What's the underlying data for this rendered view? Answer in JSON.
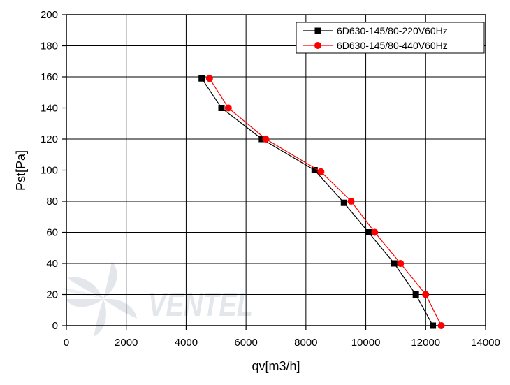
{
  "chart_data": {
    "type": "line",
    "xlabel": "qv[m3/h]",
    "ylabel": "Pst[Pa]",
    "xlim": [
      0,
      14000
    ],
    "ylim": [
      0,
      200
    ],
    "xticks": [
      0,
      2000,
      4000,
      6000,
      8000,
      10000,
      12000,
      14000
    ],
    "yticks": [
      0,
      20,
      40,
      60,
      80,
      100,
      120,
      140,
      160,
      180,
      200
    ],
    "grid": true,
    "legend_position": "top-right",
    "series": [
      {
        "name": "6D630-145/80-220V60Hz",
        "color": "#000000",
        "marker": "square",
        "points": [
          [
            4520,
            159
          ],
          [
            5180,
            140
          ],
          [
            6530,
            120
          ],
          [
            8290,
            100
          ],
          [
            9270,
            79
          ],
          [
            10090,
            60
          ],
          [
            10950,
            40
          ],
          [
            11670,
            20
          ],
          [
            12240,
            0
          ]
        ]
      },
      {
        "name": "6D630-145/80-440V60Hz",
        "color": "#ff0000",
        "marker": "circle",
        "points": [
          [
            4780,
            159
          ],
          [
            5410,
            140
          ],
          [
            6660,
            120
          ],
          [
            8500,
            99
          ],
          [
            9510,
            80
          ],
          [
            10300,
            60
          ],
          [
            11160,
            40
          ],
          [
            12000,
            20
          ],
          [
            12520,
            0
          ]
        ]
      }
    ]
  },
  "watermark": {
    "text": "VENTEL",
    "color": "#e3e7ec"
  }
}
